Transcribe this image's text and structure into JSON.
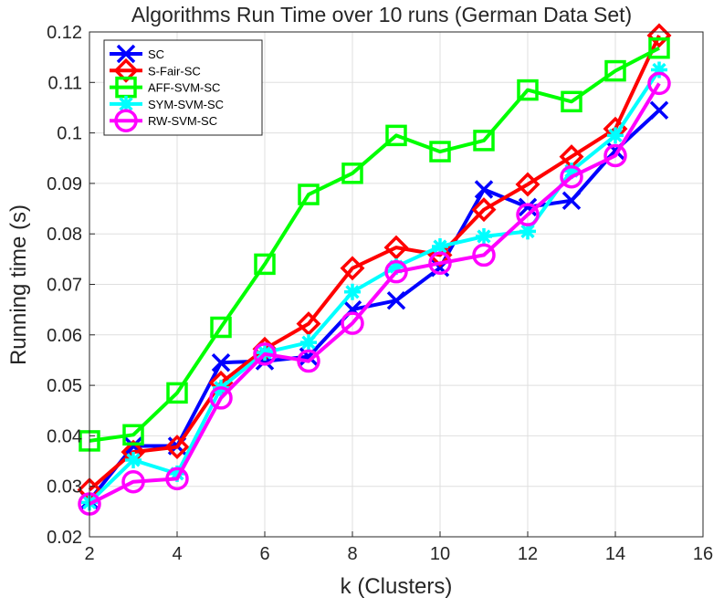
{
  "chart_data": {
    "type": "line",
    "title": "Algorithms Run Time over 10 runs (German Data Set)",
    "xlabel": "k (Clusters)",
    "ylabel": "Running time (s)",
    "xlim": [
      2,
      16
    ],
    "ylim": [
      0.02,
      0.12
    ],
    "xticks": [
      2,
      4,
      6,
      8,
      10,
      12,
      14,
      16
    ],
    "yticks": [
      0.02,
      0.03,
      0.04,
      0.05,
      0.06,
      0.07,
      0.08,
      0.09,
      0.1,
      0.11,
      0.12
    ],
    "ytick_labels": [
      "0.02",
      "0.03",
      "0.04",
      "0.05",
      "0.06",
      "0.07",
      "0.08",
      "0.09",
      "0.1",
      "0.11",
      "0.12"
    ],
    "grid": true,
    "legend_position": "top-left",
    "x": [
      2,
      3,
      4,
      5,
      6,
      7,
      8,
      9,
      10,
      11,
      12,
      13,
      14,
      15
    ],
    "series": [
      {
        "name": "SC",
        "color": "#0000ff",
        "marker": "x",
        "values": [
          0.0272,
          0.038,
          0.038,
          0.0545,
          0.0548,
          0.0557,
          0.065,
          0.0668,
          0.0733,
          0.0888,
          0.0853,
          0.0866,
          0.0965,
          0.1045
        ]
      },
      {
        "name": "S-Fair-SC",
        "color": "#ff0000",
        "marker": "diamond",
        "values": [
          0.0293,
          0.0368,
          0.0378,
          0.0505,
          0.0572,
          0.0622,
          0.0732,
          0.0773,
          0.0758,
          0.0848,
          0.0898,
          0.0953,
          0.1008,
          0.1193
        ]
      },
      {
        "name": "AFF-SVM-SC",
        "color": "#00ff00",
        "marker": "square",
        "values": [
          0.039,
          0.0402,
          0.0485,
          0.0615,
          0.074,
          0.0878,
          0.092,
          0.0995,
          0.0963,
          0.0985,
          0.1085,
          0.1062,
          0.1123,
          0.1168
        ]
      },
      {
        "name": "SYM-SVM-SC",
        "color": "#00ffff",
        "marker": "asterisk",
        "values": [
          0.0268,
          0.0352,
          0.0325,
          0.0495,
          0.0565,
          0.0585,
          0.0685,
          0.0735,
          0.0775,
          0.0795,
          0.0805,
          0.0925,
          0.0995,
          0.1125
        ]
      },
      {
        "name": "RW-SVM-SC",
        "color": "#ff00ff",
        "marker": "circle",
        "values": [
          0.0265,
          0.0309,
          0.0315,
          0.0475,
          0.0562,
          0.0548,
          0.0623,
          0.0725,
          0.0742,
          0.0758,
          0.0838,
          0.0913,
          0.0955,
          0.1098
        ]
      }
    ]
  }
}
